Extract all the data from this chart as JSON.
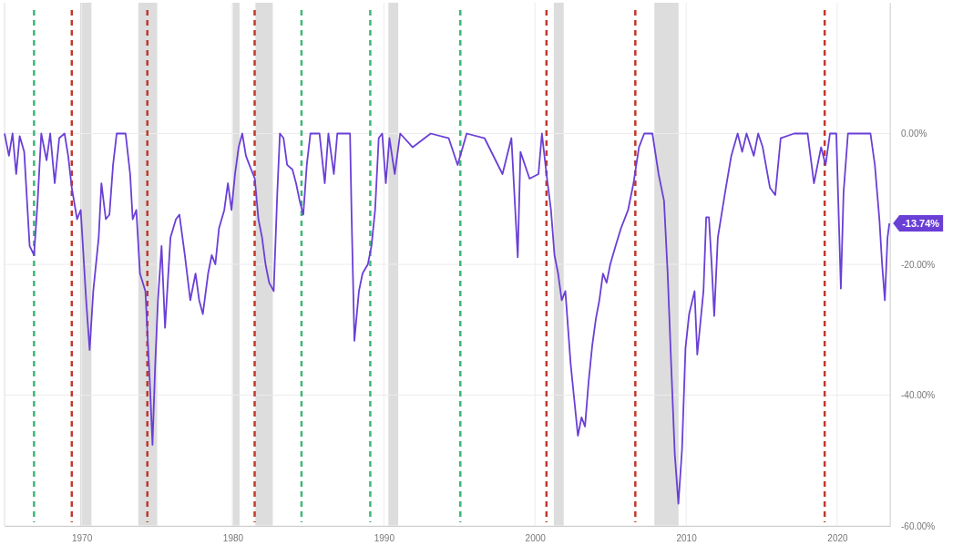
{
  "chart_data": {
    "type": "line",
    "xlim": [
      1964.9,
      2023.5
    ],
    "ylim": [
      -60,
      20
    ],
    "xticks": [
      1970,
      1980,
      1990,
      2000,
      2010,
      2020
    ],
    "yticks": [
      {
        "value": 0,
        "label": "0.00%"
      },
      {
        "value": -20,
        "label": "-20.00%"
      },
      {
        "value": -40,
        "label": "-40.00%"
      },
      {
        "value": -60,
        "label": "-60.00%"
      }
    ],
    "grid": true,
    "series": [
      {
        "color": "#6a3fd6",
        "line_style": "solid",
        "marker": "none",
        "x": [
          1964.9,
          1965.19,
          1965.43,
          1965.67,
          1965.9,
          1966.2,
          1966.56,
          1966.85,
          1967.09,
          1967.33,
          1967.68,
          1967.92,
          1968.22,
          1968.52,
          1968.87,
          1969.11,
          1969.35,
          1969.7,
          1969.94,
          1970.3,
          1970.53,
          1970.77,
          1971.13,
          1971.31,
          1971.6,
          1971.84,
          1972.08,
          1972.32,
          1972.91,
          1973.21,
          1973.38,
          1973.62,
          1973.86,
          1974.22,
          1974.51,
          1974.69,
          1974.87,
          1975.05,
          1975.29,
          1975.52,
          1975.88,
          1976.24,
          1976.47,
          1976.83,
          1977.19,
          1977.54,
          1977.78,
          1978.02,
          1978.37,
          1978.61,
          1978.85,
          1979.09,
          1979.44,
          1979.68,
          1979.92,
          1980.15,
          1980.39,
          1980.63,
          1980.87,
          1981.1,
          1981.46,
          1981.7,
          1981.94,
          1982.17,
          1982.41,
          1982.71,
          1982.95,
          1983.12,
          1983.36,
          1983.6,
          1983.95,
          1984.19,
          1984.43,
          1984.67,
          1984.9,
          1985.14,
          1985.74,
          1986.09,
          1986.33,
          1986.69,
          1986.92,
          1987.76,
          1987.87,
          1988.05,
          1988.35,
          1988.59,
          1988.94,
          1989.18,
          1989.42,
          1989.66,
          1989.89,
          1990.13,
          1990.37,
          1990.72,
          1991.08,
          1991.91,
          1993.1,
          1994.29,
          1994.88,
          1995.48,
          1996.66,
          1997.85,
          1998.44,
          1998.86,
          1999.04,
          1999.64,
          2000.23,
          2000.46,
          2000.76,
          2001.06,
          2001.29,
          2001.53,
          2001.77,
          2002.01,
          2002.36,
          2002.6,
          2002.84,
          2003.08,
          2003.31,
          2003.55,
          2003.79,
          2004.03,
          2004.26,
          2004.5,
          2004.74,
          2004.98,
          2005.33,
          2005.69,
          2006.16,
          2006.52,
          2006.88,
          2007.23,
          2007.77,
          2008.18,
          2008.54,
          2008.78,
          2009.01,
          2009.25,
          2009.49,
          2009.73,
          2009.96,
          2010.2,
          2010.56,
          2010.74,
          2011.15,
          2011.33,
          2011.51,
          2011.69,
          2011.86,
          2012.1,
          2012.58,
          2012.99,
          2013.41,
          2013.71,
          2014,
          2014.48,
          2014.77,
          2015.07,
          2015.55,
          2015.9,
          2016.26,
          2017.15,
          2018.04,
          2018.46,
          2018.93,
          2019.23,
          2019.52,
          2019.94,
          2020.24,
          2020.42,
          2020.71,
          2022.2,
          2022.49,
          2022.79,
          2022.97,
          2023.15,
          2023.33,
          2023.45
        ],
        "values": [
          0,
          -3.4,
          0,
          -6.2,
          -0.4,
          -2.8,
          -17.2,
          -18.6,
          -10.3,
          0,
          -4.1,
          0,
          -7.6,
          -0.7,
          0,
          -3.4,
          -8.3,
          -13.1,
          -11.7,
          -25.5,
          -33.1,
          -24.1,
          -15.9,
          -7.6,
          -13.1,
          -12.4,
          -4.8,
          0,
          0,
          -6.2,
          -13.1,
          -11.7,
          -21.4,
          -24.1,
          -37.9,
          -47.6,
          -35.2,
          -25.5,
          -17.2,
          -29.7,
          -15.9,
          -13.1,
          -12.4,
          -18.6,
          -25.5,
          -21.4,
          -25.5,
          -27.6,
          -21.4,
          -18.6,
          -20,
          -14.5,
          -11.7,
          -7.6,
          -11.7,
          -6.2,
          -2.1,
          0,
          -3.4,
          -4.8,
          -6.9,
          -13.1,
          -15.9,
          -20,
          -22.8,
          -24.1,
          -9,
          0,
          -0.7,
          -4.8,
          -5.5,
          -7.6,
          -10.3,
          -12.4,
          -4.8,
          0,
          0,
          -7.6,
          0,
          -6.2,
          0,
          0,
          -13.1,
          -31.7,
          -24.1,
          -21.4,
          -20,
          -17.2,
          -11.7,
          -0.7,
          0,
          -7.6,
          -0.7,
          -6.2,
          0,
          -2.1,
          0,
          -0.7,
          -4.8,
          0,
          -0.7,
          -6.2,
          -0.7,
          -18.9,
          -2.8,
          -6.9,
          -6.2,
          0,
          -6.2,
          -11.7,
          -18.6,
          -21.4,
          -25.5,
          -24.1,
          -35.2,
          -40.7,
          -46.2,
          -43.4,
          -44.8,
          -37.9,
          -32.4,
          -28.3,
          -25.5,
          -21.4,
          -22.8,
          -20,
          -17.2,
          -14.5,
          -11.7,
          -7.6,
          -2.1,
          0,
          0,
          -6.2,
          -10.3,
          -21.4,
          -35.2,
          -49,
          -56.6,
          -48.3,
          -32.8,
          -27.6,
          -24.1,
          -33.8,
          -24.1,
          -12.8,
          -12.8,
          -20,
          -27.9,
          -15.9,
          -9,
          -3.4,
          0,
          -2.8,
          0,
          -3.4,
          0,
          -2.1,
          -8.3,
          -9.4,
          -0.7,
          0,
          0,
          -7.6,
          -2.1,
          -4.8,
          0,
          0,
          -23.7,
          -9,
          0,
          0,
          -4.8,
          -13.1,
          -20,
          -25.5,
          -15.9,
          -13.74
        ]
      }
    ],
    "annotations": [
      {
        "text": "-13.74%",
        "x": 2023.45,
        "y": -13.74
      }
    ],
    "bands": [
      {
        "axis": "x",
        "from": 1969.9,
        "to": 1970.65,
        "color": "#dddddd"
      },
      {
        "axis": "x",
        "from": 1973.75,
        "to": 1975.0,
        "color": "#dddddd"
      },
      {
        "axis": "x",
        "from": 1979.95,
        "to": 1980.45,
        "color": "#dddddd"
      },
      {
        "axis": "x",
        "from": 1981.5,
        "to": 1982.65,
        "color": "#dddddd"
      },
      {
        "axis": "x",
        "from": 1990.3,
        "to": 1990.95,
        "color": "#dddddd"
      },
      {
        "axis": "x",
        "from": 2001.25,
        "to": 2001.9,
        "color": "#dddddd"
      },
      {
        "axis": "x",
        "from": 2007.9,
        "to": 2009.5,
        "color": "#dddddd"
      }
    ],
    "ref_lines": [
      {
        "axis": "x",
        "value": 1966.85,
        "color": "#3cb878",
        "line_style": "dashed"
      },
      {
        "axis": "x",
        "value": 1984.55,
        "color": "#3cb878",
        "line_style": "dashed"
      },
      {
        "axis": "x",
        "value": 1989.1,
        "color": "#3cb878",
        "line_style": "dashed"
      },
      {
        "axis": "x",
        "value": 1995.06,
        "color": "#3cb878",
        "line_style": "dashed"
      },
      {
        "axis": "x",
        "value": 1969.35,
        "color": "#c0392b",
        "line_style": "dashed"
      },
      {
        "axis": "x",
        "value": 1974.35,
        "color": "#c0392b",
        "line_style": "dashed"
      },
      {
        "axis": "x",
        "value": 1981.45,
        "color": "#c0392b",
        "line_style": "dashed"
      },
      {
        "axis": "x",
        "value": 2000.76,
        "color": "#c0392b",
        "line_style": "dashed"
      },
      {
        "axis": "x",
        "value": 2006.64,
        "color": "#c0392b",
        "line_style": "dashed"
      },
      {
        "axis": "x",
        "value": 2019.17,
        "color": "#c0392b",
        "line_style": "dashed"
      }
    ]
  }
}
